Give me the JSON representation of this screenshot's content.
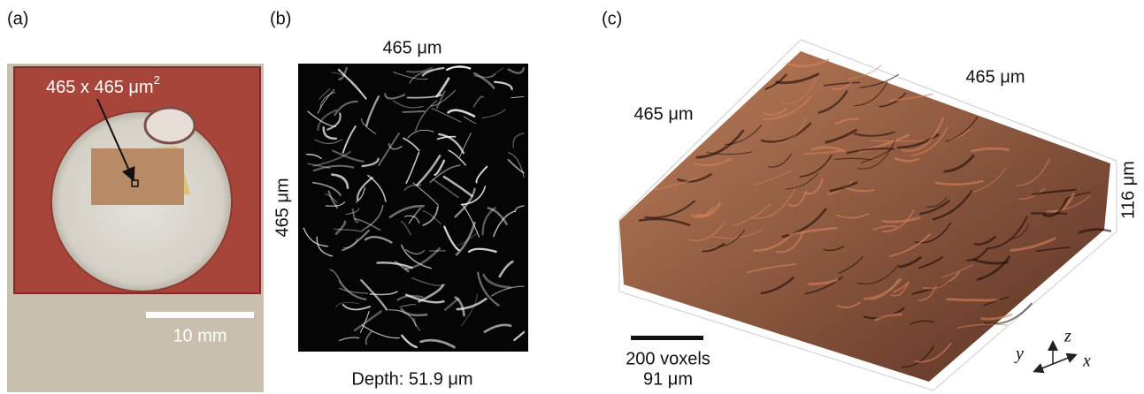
{
  "panels": [
    {
      "label": "(a)",
      "annotation": {
        "text": "465 x 465 μm",
        "superscript": "2"
      },
      "scale_bar": "10 mm"
    },
    {
      "label": "(b)",
      "top": "465 μm",
      "left": "465 μm",
      "caption": "Depth: 51.9 μm"
    },
    {
      "label": "(c)",
      "top": "465 μm",
      "left": "465 μm",
      "right": "116 μm",
      "scale_bar": [
        "200 voxels",
        "91 μm"
      ],
      "axes": [
        "z",
        "y",
        "x"
      ]
    }
  ]
}
